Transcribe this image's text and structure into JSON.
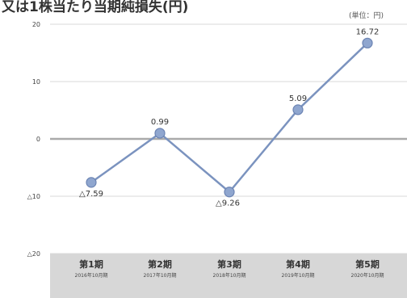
{
  "page": {
    "title": "又は1株当たり当期純損失(円)",
    "unit": "(単位：円)"
  },
  "chart_data": {
    "type": "line",
    "title": "又は1株当たり当期純損失(円)",
    "xlabel": "",
    "ylabel": "",
    "ylim": [
      -20,
      20
    ],
    "yticks": [
      20,
      10,
      0,
      -10,
      -20
    ],
    "ytick_labels": [
      "20",
      "10",
      "0",
      "△10",
      "△20"
    ],
    "categories": [
      {
        "label": "第1期",
        "sub": "2016年10月期"
      },
      {
        "label": "第2期",
        "sub": "2017年10月期"
      },
      {
        "label": "第3期",
        "sub": "2018年10月期"
      },
      {
        "label": "第4期",
        "sub": "2019年10月期"
      },
      {
        "label": "第5期",
        "sub": "2020年10月期"
      }
    ],
    "series": [
      {
        "values": [
          -7.59,
          0.99,
          -9.26,
          5.09,
          16.72
        ],
        "data_labels": [
          "△7.59",
          "0.99",
          "△9.26",
          "5.09",
          "16.72"
        ],
        "color": "#7b93bf"
      }
    ],
    "grid": true,
    "zero_line_color": "#aaaaaa",
    "band_color": "#d7d7d7"
  }
}
